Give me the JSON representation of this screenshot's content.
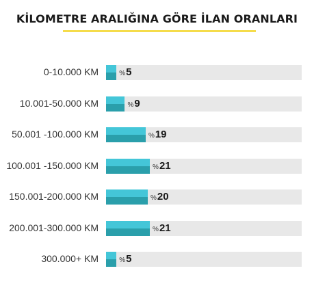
{
  "chart_data": {
    "type": "bar",
    "title": "KİLOMETRE ARALIĞINA GÖRE İLAN ORANLARI",
    "categories": [
      "0-10.000 KM",
      "10.001-50.000 KM",
      "50.001 -100.000 KM",
      "100.001 -150.000 KM",
      "150.001-200.000 KM",
      "200.001-300.000 KM",
      "300.000+ KM"
    ],
    "values": [
      5,
      9,
      19,
      21,
      20,
      21,
      5
    ],
    "value_prefix": "%",
    "xlim": [
      0,
      100
    ],
    "orientation": "horizontal",
    "colors": {
      "bar_top": "#44c6d8",
      "bar_bottom": "#2a9fab",
      "track": "#e8e8e8",
      "underline": "#f5dc4b"
    }
  }
}
